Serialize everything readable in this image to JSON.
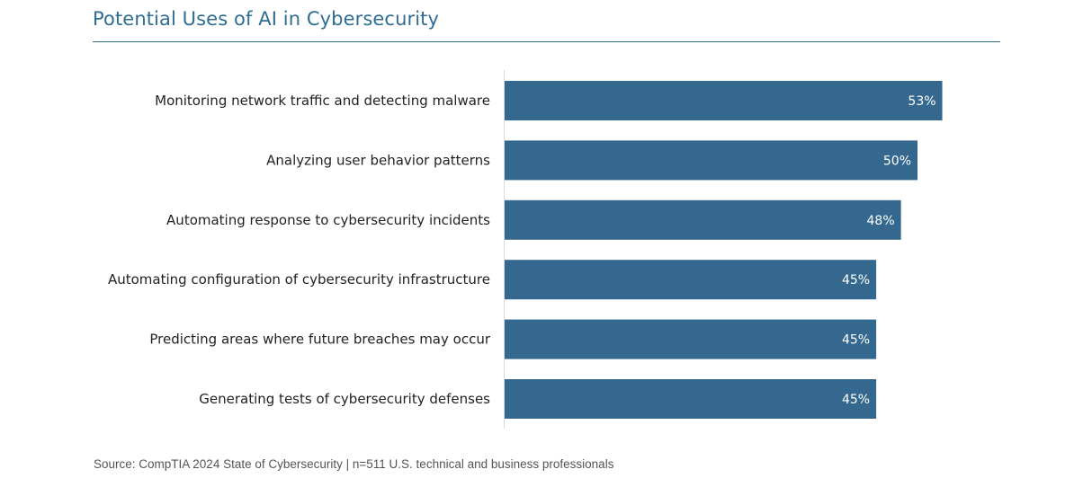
{
  "chart_data": {
    "type": "bar",
    "orientation": "horizontal",
    "title": "Potential Uses of AI in Cybersecurity",
    "categories": [
      "Monitoring network traffic and detecting malware",
      "Analyzing user behavior patterns",
      "Automating response to cybersecurity incidents",
      "Automating configuration of cybersecurity infrastructure",
      "Predicting areas where future breaches may occur",
      "Generating tests of cybersecurity defenses"
    ],
    "values": [
      53,
      50,
      48,
      45,
      45,
      45
    ],
    "value_labels": [
      "53%",
      "50%",
      "48%",
      "45%",
      "45%",
      "45%"
    ],
    "unit": "%",
    "bar_color": "#34688f",
    "title_color": "#2f6d93",
    "grid": false,
    "legend": "none"
  },
  "source": "Source: CompTIA 2024 State of Cybersecurity | n=511 U.S. technical and business professionals"
}
